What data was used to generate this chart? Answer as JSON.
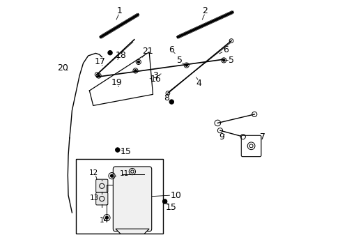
{
  "title": "",
  "bg_color": "#ffffff",
  "line_color": "#000000",
  "label_color": "#000000",
  "font_size": 9,
  "fig_width": 4.89,
  "fig_height": 3.6,
  "dpi": 100
}
